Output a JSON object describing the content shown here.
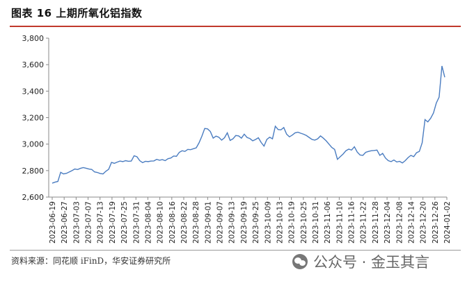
{
  "header": {
    "title": "图表 16 上期所氧化铝指数"
  },
  "footer": {
    "source": "资料来源：同花顺 iFinD，华安证券研究所",
    "watermark": "公众号 · 金玉其言"
  },
  "chart_data": {
    "type": "line",
    "ylim": [
      2600,
      3800
    ],
    "yticks": [
      2600,
      2800,
      3000,
      3200,
      3400,
      3600,
      3800
    ],
    "ytick_labels": [
      "2,600",
      "2,800",
      "3,000",
      "3,200",
      "3,400",
      "3,600",
      "3,800"
    ],
    "xtick_labels": [
      "2023-06-19",
      "2023-06-27",
      "2023-07-03",
      "2023-07-07",
      "2023-07-13",
      "2023-07-19",
      "2023-07-25",
      "2023-07-31",
      "2023-08-04",
      "2023-08-10",
      "2023-08-16",
      "2023-08-22",
      "2023-08-28",
      "2023-09-01",
      "2023-09-07",
      "2023-09-13",
      "2023-09-19",
      "2023-09-25",
      "2023-10-09",
      "2023-10-13",
      "2023-10-19",
      "2023-10-25",
      "2023-10-31",
      "2023-11-06",
      "2023-11-10",
      "2023-11-16",
      "2023-11-22",
      "2023-11-28",
      "2023-12-04",
      "2023-12-08",
      "2023-12-14",
      "2023-12-20",
      "2023-12-26",
      "2024-01-02"
    ],
    "line_color": "#4a7cc0",
    "grid": false,
    "series": [
      {
        "values": [
          2705,
          2713,
          2718,
          2787,
          2775,
          2779,
          2789,
          2800,
          2812,
          2808,
          2817,
          2823,
          2818,
          2812,
          2809,
          2790,
          2786,
          2778,
          2775,
          2795,
          2810,
          2862,
          2855,
          2864,
          2872,
          2868,
          2875,
          2870,
          2872,
          2912,
          2905,
          2875,
          2860,
          2870,
          2868,
          2872,
          2873,
          2885,
          2878,
          2883,
          2875,
          2890,
          2895,
          2910,
          2908,
          2938,
          2950,
          2945,
          2960,
          2958,
          2965,
          2972,
          3010,
          3060,
          3118,
          3115,
          3095,
          3045,
          3060,
          3052,
          3030,
          3048,
          3085,
          3028,
          3040,
          3065,
          3062,
          3045,
          3075,
          3050,
          3042,
          3025,
          3035,
          3048,
          3012,
          2985,
          3035,
          3052,
          3040,
          3135,
          3110,
          3108,
          3125,
          3075,
          3055,
          3068,
          3085,
          3090,
          3082,
          3075,
          3065,
          3050,
          3035,
          3030,
          3040,
          3062,
          3045,
          3025,
          3000,
          2975,
          2960,
          2885,
          2905,
          2925,
          2950,
          2962,
          2955,
          2980,
          2940,
          2918,
          2915,
          2938,
          2945,
          2950,
          2952,
          2955,
          2915,
          2930,
          2895,
          2875,
          2868,
          2880,
          2865,
          2870,
          2858,
          2875,
          2898,
          2915,
          2905,
          2935,
          2945,
          3010,
          3185,
          3168,
          3195,
          3235,
          3310,
          3355,
          3590,
          3505
        ]
      }
    ]
  }
}
